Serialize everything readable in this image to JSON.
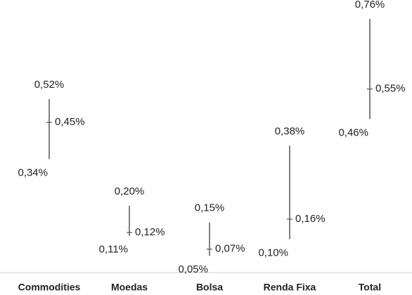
{
  "chart_data": {
    "type": "range",
    "categories": [
      "Commodities",
      "Moedas",
      "Bolsa",
      "Renda Fixa",
      "Total"
    ],
    "high": {
      "values": [
        0.52,
        0.2,
        0.15,
        0.38,
        0.76
      ],
      "value_labels": [
        "0,52%",
        "0,20%",
        "0,15%",
        "0,38%",
        "0,76%"
      ]
    },
    "mid": {
      "values": [
        0.45,
        0.12,
        0.07,
        0.16,
        0.55
      ],
      "value_labels": [
        "0,45%",
        "0,12%",
        "0,07%",
        "0,16%",
        "0,55%"
      ]
    },
    "low": {
      "values": [
        0.34,
        0.11,
        0.05,
        0.1,
        0.46
      ],
      "value_labels": [
        "0,34%",
        "0,11%",
        "0,05%",
        "0,10%",
        "0,46%"
      ]
    },
    "color": "#555555",
    "ylim": [
      0,
      0.8
    ]
  }
}
